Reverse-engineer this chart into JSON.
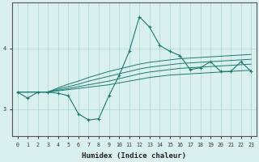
{
  "x_values": [
    0,
    1,
    2,
    3,
    4,
    5,
    6,
    7,
    8,
    9,
    10,
    11,
    12,
    13,
    14,
    15,
    16,
    17,
    18,
    19,
    20,
    21,
    22,
    23
  ],
  "main_line": [
    3.28,
    3.18,
    3.28,
    3.28,
    3.26,
    3.22,
    2.92,
    2.82,
    2.84,
    3.22,
    3.55,
    3.95,
    4.52,
    4.35,
    4.05,
    3.95,
    3.88,
    3.65,
    3.68,
    3.78,
    3.62,
    3.62,
    3.78,
    3.62
  ],
  "flat_lines": [
    [
      3.28,
      3.28,
      3.28,
      3.28,
      3.3,
      3.32,
      3.34,
      3.36,
      3.38,
      3.4,
      3.43,
      3.46,
      3.49,
      3.52,
      3.54,
      3.56,
      3.57,
      3.58,
      3.59,
      3.6,
      3.61,
      3.62,
      3.63,
      3.64
    ],
    [
      3.28,
      3.28,
      3.28,
      3.28,
      3.31,
      3.34,
      3.37,
      3.4,
      3.43,
      3.46,
      3.5,
      3.54,
      3.58,
      3.61,
      3.63,
      3.65,
      3.67,
      3.68,
      3.69,
      3.7,
      3.71,
      3.72,
      3.73,
      3.74
    ],
    [
      3.28,
      3.28,
      3.28,
      3.28,
      3.33,
      3.37,
      3.41,
      3.46,
      3.5,
      3.54,
      3.58,
      3.62,
      3.66,
      3.69,
      3.71,
      3.73,
      3.75,
      3.76,
      3.77,
      3.78,
      3.79,
      3.8,
      3.81,
      3.82
    ],
    [
      3.28,
      3.28,
      3.28,
      3.28,
      3.35,
      3.41,
      3.46,
      3.52,
      3.57,
      3.62,
      3.66,
      3.7,
      3.74,
      3.77,
      3.79,
      3.81,
      3.83,
      3.84,
      3.85,
      3.86,
      3.87,
      3.88,
      3.89,
      3.9
    ]
  ],
  "line_color": "#1a7a6e",
  "bg_color": "#daf0ee",
  "grid_color": "#a8d5d0",
  "xlabel": "Humidex (Indice chaleur)",
  "yticks": [
    3,
    4
  ],
  "ylim": [
    2.55,
    4.75
  ],
  "xlim": [
    -0.5,
    23.5
  ]
}
